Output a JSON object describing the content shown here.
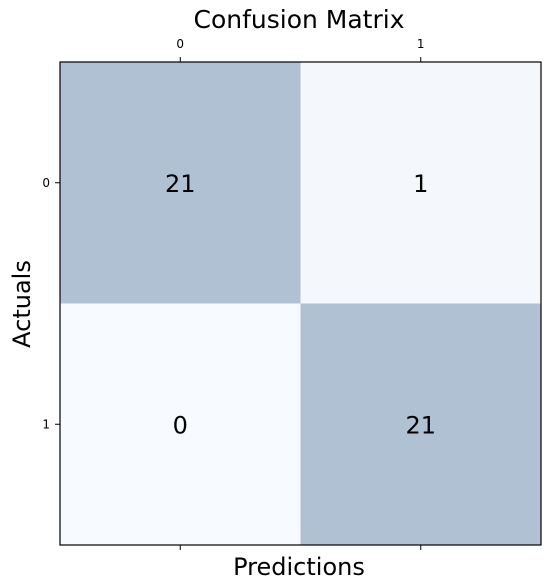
{
  "chart_data": {
    "type": "heatmap",
    "title": "Confusion Matrix",
    "xlabel": "Predictions",
    "ylabel": "Actuals",
    "x_categories": [
      "0",
      "1"
    ],
    "y_categories": [
      "0",
      "1"
    ],
    "values": [
      [
        21,
        1
      ],
      [
        0,
        21
      ]
    ],
    "colormap": {
      "low": "#f7fbff",
      "high": "#b0c1d4"
    },
    "x_tick_position": "top",
    "grid": false
  }
}
